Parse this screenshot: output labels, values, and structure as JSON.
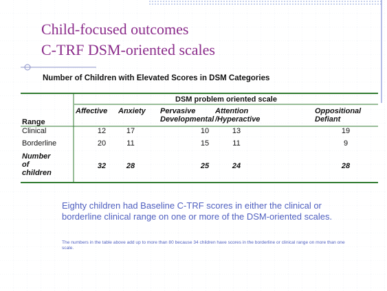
{
  "title": [
    "Child-focused outcomes",
    "C-TRF DSM-oriented scales"
  ],
  "subtitle": "Number of Children with Elevated Scores in DSM Categories",
  "table": {
    "group_header": "DSM problem oriented scale",
    "row_header": "Range",
    "columns": [
      "Affective",
      "Anxiety",
      "Pervasive Developmental",
      "Attention /Hyperactive",
      "Oppositional Defiant"
    ],
    "rows": [
      {
        "label": "Clinical",
        "values": [
          12,
          17,
          10,
          13,
          19
        ]
      },
      {
        "label": "Borderline",
        "values": [
          20,
          11,
          15,
          11,
          9
        ]
      },
      {
        "label": "Number of children",
        "values": [
          32,
          28,
          25,
          24,
          28
        ]
      }
    ]
  },
  "body": "Eighty children had Baseline C-TRF scores in either the clinical or borderline clinical range on one or more of the DSM-oriented scales.",
  "note": "The numbers in the table above add up to more than 80 because 34 children have scores in the borderline or clinical range on more than one scale."
}
